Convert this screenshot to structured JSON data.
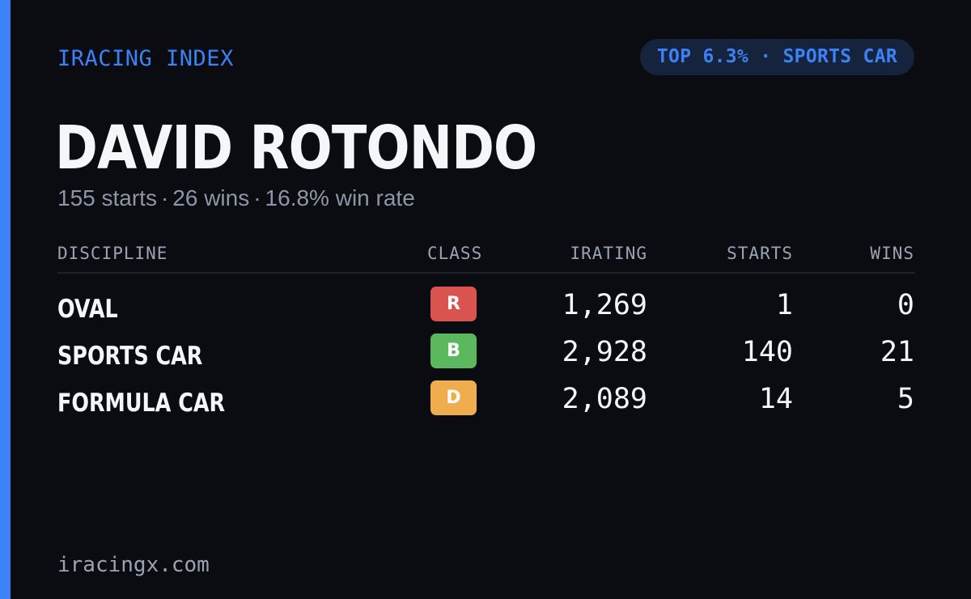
{
  "brand": "IRACING INDEX",
  "rank_badge": "TOP 6.3% · SPORTS CAR",
  "driver": {
    "name": "DAVID ROTONDO",
    "starts": "155 starts",
    "wins": "26 wins",
    "win_rate": "16.8% win rate",
    "separator": "·"
  },
  "table": {
    "headers": {
      "discipline": "DISCIPLINE",
      "class": "CLASS",
      "irating": "IRATING",
      "starts": "STARTS",
      "wins": "WINS"
    },
    "rows": [
      {
        "discipline": "OVAL",
        "class": "R",
        "class_color": "#d9534f",
        "irating": "1,269",
        "starts": "1",
        "wins": "0"
      },
      {
        "discipline": "SPORTS CAR",
        "class": "B",
        "class_color": "#5cb85c",
        "irating": "2,928",
        "starts": "140",
        "wins": "21"
      },
      {
        "discipline": "FORMULA CAR",
        "class": "D",
        "class_color": "#f0ad4e",
        "irating": "2,089",
        "starts": "14",
        "wins": "5"
      }
    ]
  },
  "footer": "iracingx.com",
  "colors": {
    "accent": "#3b82f6",
    "background": "#0a0c12"
  }
}
